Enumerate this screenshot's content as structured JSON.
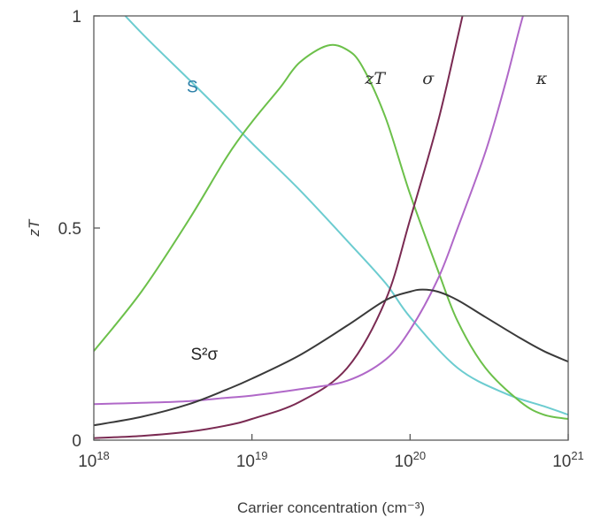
{
  "chart_data": {
    "type": "line",
    "xlabel": "Carrier concentration (cm⁻³)",
    "ylabel": "zT",
    "x_scale": "log",
    "xlim": [
      1e+18,
      1e+21
    ],
    "ylim": [
      0,
      1
    ],
    "x_ticks": [
      {
        "value": 1e+18,
        "base": "10",
        "exp": "18"
      },
      {
        "value": 1e+19,
        "base": "10",
        "exp": "19"
      },
      {
        "value": 1e+20,
        "base": "10",
        "exp": "20"
      },
      {
        "value": 1e+21,
        "base": "10",
        "exp": "21"
      }
    ],
    "y_ticks": [
      {
        "value": 0,
        "label": "0"
      },
      {
        "value": 0.5,
        "label": "0.5"
      },
      {
        "value": 1,
        "label": "1"
      }
    ],
    "grid": false,
    "legend": "none",
    "series": [
      {
        "name": "S",
        "color": "#6cccd0",
        "label_at": [
          4.2e+18,
          0.82
        ],
        "label_style": "sans",
        "x": [
          1e+18,
          2e+18,
          4e+18,
          7e+18,
          1e+19,
          2e+19,
          4e+19,
          7e+19,
          1e+20,
          2e+20,
          4e+20,
          7e+20,
          1e+21
        ],
        "y": [
          1.08,
          0.96,
          0.85,
          0.76,
          0.7,
          0.59,
          0.47,
          0.37,
          0.29,
          0.17,
          0.11,
          0.08,
          0.06
        ]
      },
      {
        "name": "zT",
        "color": "#6cc04a",
        "label_at": [
          6e+19,
          0.84
        ],
        "label_style": "italic-serif",
        "x": [
          1e+18,
          2e+18,
          4e+18,
          7e+18,
          1e+19,
          1.5e+19,
          2e+19,
          3e+19,
          4e+19,
          5e+19,
          7e+19,
          1e+20,
          1.5e+20,
          2e+20,
          3e+20,
          5e+20,
          7e+20,
          1e+21
        ],
        "y": [
          0.21,
          0.35,
          0.52,
          0.67,
          0.75,
          0.83,
          0.89,
          0.93,
          0.92,
          0.88,
          0.76,
          0.58,
          0.4,
          0.28,
          0.17,
          0.09,
          0.06,
          0.05
        ]
      },
      {
        "name": "σ",
        "color": "#7a2a52",
        "label_at": [
          1.3e+20,
          0.84
        ],
        "label_style": "italic-serif",
        "x": [
          1e+18,
          2e+18,
          4e+18,
          7e+18,
          1e+19,
          2e+19,
          4e+19,
          7e+19,
          1e+20,
          1.5e+20,
          2e+20,
          2.4e+20
        ],
        "y": [
          0.005,
          0.01,
          0.02,
          0.035,
          0.05,
          0.09,
          0.17,
          0.33,
          0.52,
          0.75,
          0.95,
          1.08
        ]
      },
      {
        "name": "κ",
        "color": "#b068c8",
        "label_at": [
          6.8e+20,
          0.84
        ],
        "label_style": "italic-serif",
        "x": [
          1e+18,
          2e+18,
          4e+18,
          7e+18,
          1e+19,
          2e+19,
          4e+19,
          7e+19,
          1e+20,
          1.5e+20,
          2e+20,
          3e+20,
          4e+20,
          5e+20,
          6e+20
        ],
        "y": [
          0.085,
          0.088,
          0.092,
          0.1,
          0.105,
          0.12,
          0.14,
          0.19,
          0.26,
          0.38,
          0.5,
          0.68,
          0.84,
          0.98,
          1.08
        ]
      },
      {
        "name": "S²σ",
        "color": "#3a3a3a",
        "label_at": [
          5e+18,
          0.19
        ],
        "label_style": "sans",
        "x": [
          1e+18,
          2e+18,
          4e+18,
          7e+18,
          1e+19,
          2e+19,
          4e+19,
          7e+19,
          1e+20,
          1.2e+20,
          1.5e+20,
          2e+20,
          3e+20,
          5e+20,
          7e+20,
          1e+21
        ],
        "y": [
          0.035,
          0.055,
          0.085,
          0.12,
          0.145,
          0.2,
          0.27,
          0.33,
          0.35,
          0.355,
          0.35,
          0.33,
          0.29,
          0.24,
          0.21,
          0.185
        ]
      }
    ]
  }
}
